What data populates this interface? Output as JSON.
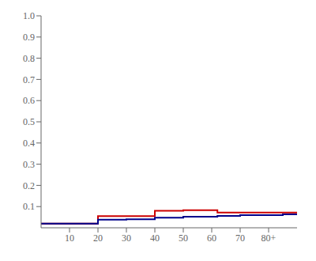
{
  "chart_data": {
    "type": "step",
    "x": [
      0,
      15,
      20,
      25,
      30,
      40,
      45,
      50,
      55,
      62,
      70,
      85,
      90
    ],
    "series": [
      {
        "color": "#cc0000",
        "values": [
          0.02,
          0.02,
          0.055,
          0.055,
          0.055,
          0.08,
          0.08,
          0.083,
          0.083,
          0.072,
          0.072,
          0.072,
          0.072
        ]
      },
      {
        "color": "#00008b",
        "values": [
          0.02,
          0.02,
          0.038,
          0.038,
          0.04,
          0.048,
          0.048,
          0.052,
          0.052,
          0.056,
          0.06,
          0.063,
          0.065
        ]
      }
    ],
    "xlim": [
      0,
      90
    ],
    "ylim": [
      0,
      1.0
    ],
    "xticks": [
      10,
      20,
      30,
      40,
      50,
      60,
      70,
      {
        "value": 80,
        "label": "80+"
      }
    ],
    "yticks": [
      0.1,
      0.2,
      0.3,
      0.4,
      0.5,
      0.6,
      0.7,
      0.8,
      0.9,
      {
        "value": 1.0,
        "label": "1.0"
      }
    ],
    "grid": false
  }
}
